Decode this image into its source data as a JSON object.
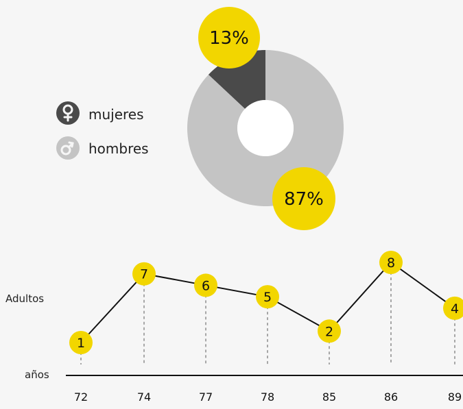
{
  "colors": {
    "accent": "#f2d600",
    "female": "#4a4a4a",
    "male": "#c4c4c4",
    "line": "#111111"
  },
  "chart_data": [
    {
      "type": "pie",
      "variant": "donut",
      "legend_position": "left",
      "slices": [
        {
          "label": "mujeres",
          "value": 13,
          "value_label": "13%",
          "color": "#4a4a4a",
          "icon": "female-icon"
        },
        {
          "label": "hombres",
          "value": 87,
          "value_label": "87%",
          "color": "#c4c4c4",
          "icon": "male-icon"
        }
      ]
    },
    {
      "type": "line",
      "ylabel": "Adultos",
      "xlabel": "años",
      "categories": [
        "72",
        "74",
        "77",
        "78",
        "85",
        "86",
        "89"
      ],
      "values": [
        1,
        7,
        6,
        5,
        2,
        8,
        4
      ],
      "data_labels": [
        "1",
        "7",
        "6",
        "5",
        "2",
        "8",
        "4"
      ],
      "ylim": [
        0,
        8
      ],
      "grid": false
    }
  ]
}
